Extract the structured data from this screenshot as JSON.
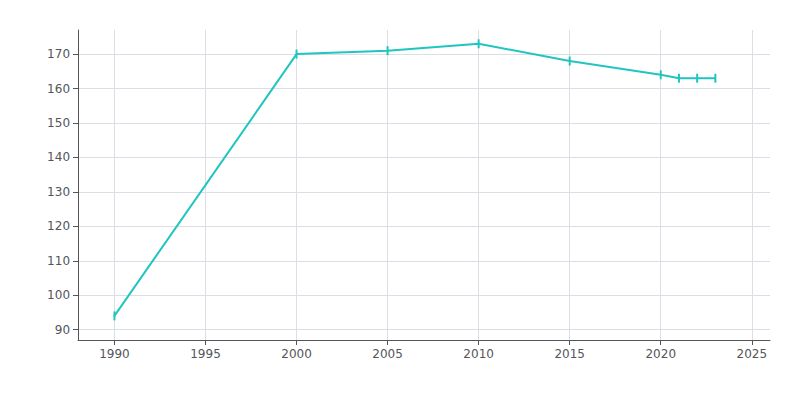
{
  "chart_data": {
    "type": "line",
    "x": [
      1990,
      2000,
      2005,
      2010,
      2015,
      2020,
      2021,
      2022,
      2023
    ],
    "values": [
      94,
      170,
      171,
      173,
      168,
      164,
      163,
      163,
      163
    ],
    "color": "#20c5c0",
    "marker": "|",
    "xlim": [
      1988,
      2026
    ],
    "ylim": [
      87,
      177
    ],
    "xticks": [
      1990,
      1995,
      2000,
      2005,
      2010,
      2015,
      2020,
      2025
    ],
    "yticks": [
      90,
      100,
      110,
      120,
      130,
      140,
      150,
      160,
      170
    ],
    "grid": true
  }
}
